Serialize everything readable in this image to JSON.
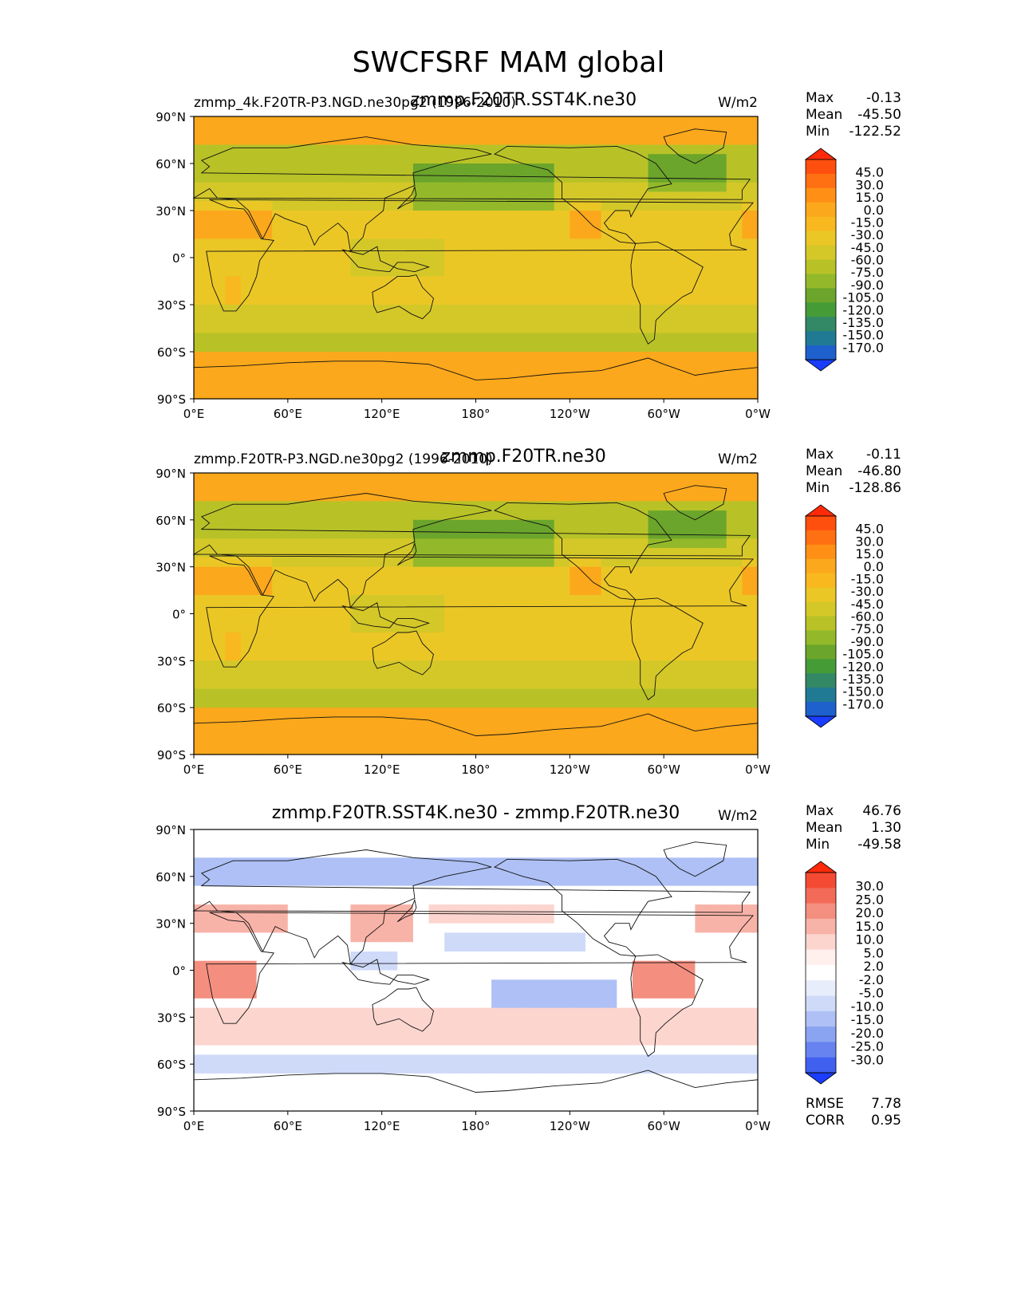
{
  "figure": {
    "title": "SWCFSRF MAM global",
    "units": "W/m2",
    "lat_ticks": [
      "90°N",
      "60°N",
      "30°N",
      "0°",
      "30°S",
      "60°S",
      "90°S"
    ],
    "lon_ticks": [
      "0°E",
      "60°E",
      "120°E",
      "180°",
      "120°W",
      "60°W",
      "0°W"
    ]
  },
  "chart_data": [
    {
      "type": "heatmap",
      "panel": "test",
      "left_title": "zmmp_4k.F20TR-P3.NGD.ne30pg2 (1996-2010)",
      "center_title": "zmmp.F20TR.SST4K.ne30",
      "right_title": "W/m2",
      "stats": [
        {
          "label": "Max",
          "value": "-0.13"
        },
        {
          "label": "Mean",
          "value": "-45.50"
        },
        {
          "label": "Min",
          "value": "-122.52"
        }
      ],
      "colorbar": {
        "levels": [
          "45.0",
          "30.0",
          "15.0",
          "0.0",
          "-15.0",
          "-30.0",
          "-45.0",
          "-60.0",
          "-75.0",
          "-90.0",
          "-105.0",
          "-120.0",
          "-135.0",
          "-150.0",
          "-170.0"
        ],
        "colors": [
          "#ff2a0a",
          "#ff4f0e",
          "#ff7012",
          "#ff9015",
          "#fca81c",
          "#f8b81e",
          "#ebc726",
          "#d4c829",
          "#b8c227",
          "#93b92a",
          "#6ba52b",
          "#459c37",
          "#338865",
          "#217a94",
          "#1e60cc",
          "#1a3dff"
        ]
      },
      "xlim": [
        0,
        360
      ],
      "ylim": [
        -90,
        90
      ]
    },
    {
      "type": "heatmap",
      "panel": "reference",
      "left_title": "zmmp.F20TR-P3.NGD.ne30pg2 (1996-2010)",
      "center_title": "zmmp.F20TR.ne30",
      "right_title": "W/m2",
      "stats": [
        {
          "label": "Max",
          "value": "-0.11"
        },
        {
          "label": "Mean",
          "value": "-46.80"
        },
        {
          "label": "Min",
          "value": "-128.86"
        }
      ],
      "colorbar": {
        "levels": [
          "45.0",
          "30.0",
          "15.0",
          "0.0",
          "-15.0",
          "-30.0",
          "-45.0",
          "-60.0",
          "-75.0",
          "-90.0",
          "-105.0",
          "-120.0",
          "-135.0",
          "-150.0",
          "-170.0"
        ],
        "colors": [
          "#ff2a0a",
          "#ff4f0e",
          "#ff7012",
          "#ff9015",
          "#fca81c",
          "#f8b81e",
          "#ebc726",
          "#d4c829",
          "#b8c227",
          "#93b92a",
          "#6ba52b",
          "#459c37",
          "#338865",
          "#217a94",
          "#1e60cc",
          "#1a3dff"
        ]
      },
      "xlim": [
        0,
        360
      ],
      "ylim": [
        -90,
        90
      ]
    },
    {
      "type": "heatmap",
      "panel": "difference",
      "left_title": "",
      "center_title": "zmmp.F20TR.SST4K.ne30 - zmmp.F20TR.ne30",
      "right_title": "W/m2",
      "stats": [
        {
          "label": "Max",
          "value": "46.76"
        },
        {
          "label": "Mean",
          "value": "1.30"
        },
        {
          "label": "Min",
          "value": "-49.58"
        }
      ],
      "extra_stats": [
        {
          "label": "RMSE",
          "value": "7.78"
        },
        {
          "label": "CORR",
          "value": "0.95"
        }
      ],
      "colorbar": {
        "levels": [
          "30.0",
          "25.0",
          "20.0",
          "15.0",
          "10.0",
          "5.0",
          "2.0",
          "-2.0",
          "-5.0",
          "-10.0",
          "-15.0",
          "-20.0",
          "-25.0",
          "-30.0"
        ],
        "colors": [
          "#ff2a0a",
          "#f44a34",
          "#f36a58",
          "#f48f80",
          "#f8b3a8",
          "#fcd5cf",
          "#fff0ee",
          "#ffffff",
          "#e8edfc",
          "#cfdaf9",
          "#aec0f5",
          "#8aa4f2",
          "#6683f0",
          "#4060f0",
          "#1a3dff"
        ]
      },
      "xlim": [
        0,
        360
      ],
      "ylim": [
        -90,
        90
      ]
    }
  ]
}
